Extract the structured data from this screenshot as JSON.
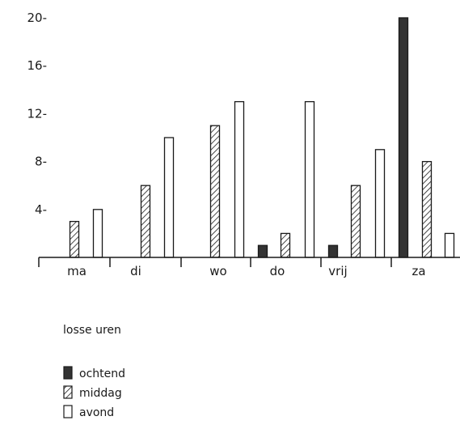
{
  "chart_data": {
    "type": "bar",
    "categories": [
      "ma",
      "di",
      "wo",
      "do",
      "vrij",
      "za"
    ],
    "series": [
      {
        "name": "ochtend",
        "values": [
          0,
          0,
          0,
          1,
          1,
          20
        ],
        "style": "solid"
      },
      {
        "name": "middag",
        "values": [
          3,
          6,
          11,
          2,
          6,
          8
        ],
        "style": "hatched"
      },
      {
        "name": "avond",
        "values": [
          4,
          10,
          13,
          13,
          9,
          2
        ],
        "style": "hollow"
      }
    ],
    "y_ticks": [
      "4-",
      "8-",
      "12-",
      "16-",
      "20-"
    ],
    "ylim": [
      0,
      20
    ],
    "grid": false,
    "legend_title": "losse uren",
    "legend_placement": "bottom-left",
    "colors": {
      "ink": "#1a1a1a",
      "solid_fill": "#333333",
      "background": "#ffffff"
    }
  }
}
